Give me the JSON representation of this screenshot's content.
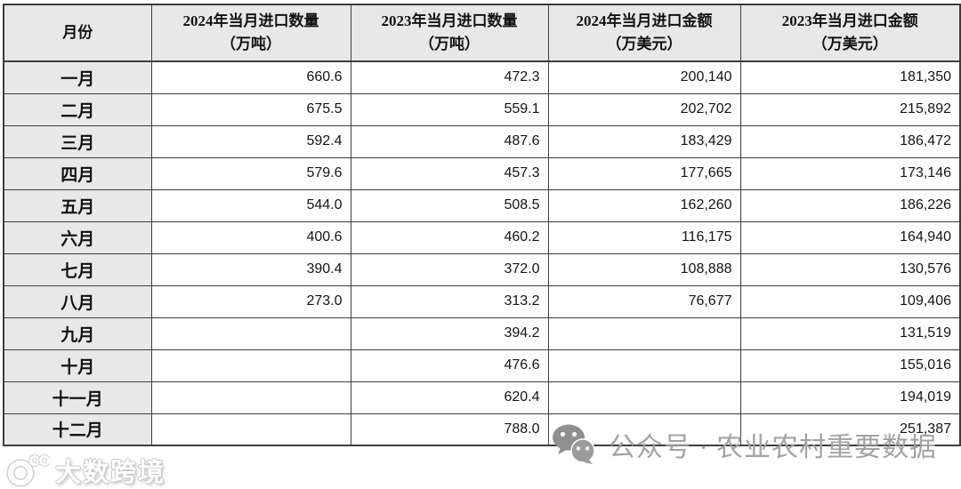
{
  "table": {
    "headers": {
      "month": "月份",
      "qty2024_l1": "2024年当月进口数量",
      "qty2024_l2": "（万吨）",
      "qty2023_l1": "2023年当月进口数量",
      "qty2023_l2": "（万吨）",
      "amt2024_l1": "2024年当月进口金额",
      "amt2024_l2": "（万美元）",
      "amt2023_l1": "2023年当月进口金额",
      "amt2023_l2": "（万美元）"
    },
    "rows": [
      {
        "month": "一月",
        "qty2024": "660.6",
        "qty2023": "472.3",
        "amt2024": "200,140",
        "amt2023": "181,350"
      },
      {
        "month": "二月",
        "qty2024": "675.5",
        "qty2023": "559.1",
        "amt2024": "202,702",
        "amt2023": "215,892"
      },
      {
        "month": "三月",
        "qty2024": "592.4",
        "qty2023": "487.6",
        "amt2024": "183,429",
        "amt2023": "186,472"
      },
      {
        "month": "四月",
        "qty2024": "579.6",
        "qty2023": "457.3",
        "amt2024": "177,665",
        "amt2023": "173,146"
      },
      {
        "month": "五月",
        "qty2024": "544.0",
        "qty2023": "508.5",
        "amt2024": "162,260",
        "amt2023": "186,226"
      },
      {
        "month": "六月",
        "qty2024": "400.6",
        "qty2023": "460.2",
        "amt2024": "116,175",
        "amt2023": "164,940"
      },
      {
        "month": "七月",
        "qty2024": "390.4",
        "qty2023": "372.0",
        "amt2024": "108,888",
        "amt2023": "130,576"
      },
      {
        "month": "八月",
        "qty2024": "273.0",
        "qty2023": "313.2",
        "amt2024": "76,677",
        "amt2023": "109,406"
      },
      {
        "month": "九月",
        "qty2024": "",
        "qty2023": "394.2",
        "amt2024": "",
        "amt2023": "131,519"
      },
      {
        "month": "十月",
        "qty2024": "",
        "qty2023": "476.6",
        "amt2024": "",
        "amt2023": "155,016"
      },
      {
        "month": "十一月",
        "qty2024": "",
        "qty2023": "620.4",
        "amt2024": "",
        "amt2023": "194,019"
      },
      {
        "month": "十二月",
        "qty2024": "",
        "qty2023": "788.0",
        "amt2024": "",
        "amt2023": "251,387"
      }
    ]
  },
  "watermarks": {
    "brand_text": "大数跨境",
    "wechat_text": "公众号 · 农业农村重要数据"
  },
  "colors": {
    "header_bg": "#e8e8e8",
    "border": "#3d3d3d",
    "watermark_gray": "#a2a2a2"
  }
}
